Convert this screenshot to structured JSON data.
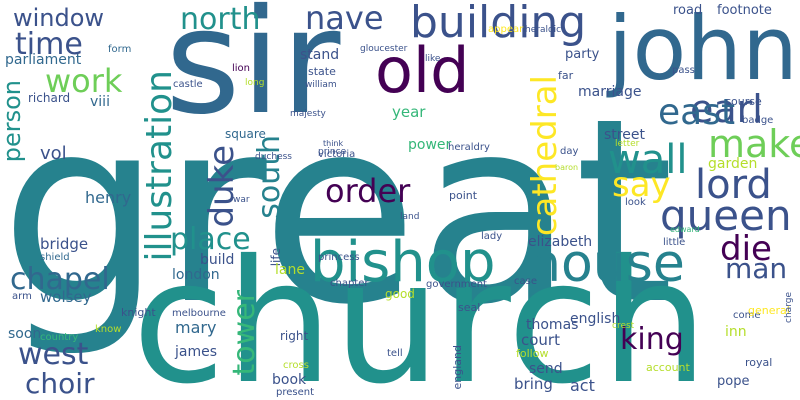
{
  "palette": {
    "dark_purple": "#440154",
    "indigo": "#3b528b",
    "blue": "#31688e",
    "teal": "#26828e",
    "sea": "#21918c",
    "green": "#35b779",
    "lime": "#6ece58",
    "yellow_green": "#b5de2b",
    "yellow": "#fde725"
  },
  "words": [
    {
      "text": "great",
      "color": "#26828e"
    },
    {
      "text": "church",
      "color": "#21918c"
    },
    {
      "text": "sir",
      "color": "#31688e"
    },
    {
      "text": "john",
      "color": "#31688e"
    },
    {
      "text": "old",
      "color": "#440154"
    },
    {
      "text": "bishop",
      "color": "#21918c"
    },
    {
      "text": "house",
      "color": "#26828e"
    },
    {
      "text": "building",
      "color": "#3b528b"
    },
    {
      "text": "nave",
      "color": "#3b528b"
    },
    {
      "text": "north",
      "color": "#21918c"
    },
    {
      "text": "earl",
      "color": "#3b528b"
    },
    {
      "text": "make",
      "color": "#6ece58"
    },
    {
      "text": "east",
      "color": "#31688e"
    },
    {
      "text": "lord",
      "color": "#3b528b"
    },
    {
      "text": "queen",
      "color": "#3b528b"
    },
    {
      "text": "wall",
      "color": "#21918c"
    },
    {
      "text": "say",
      "color": "#fde725"
    },
    {
      "text": "cathedral",
      "color": "#fde725"
    },
    {
      "text": "illustration",
      "color": "#21918c"
    },
    {
      "text": "duke",
      "color": "#3b528b"
    },
    {
      "text": "south",
      "color": "#26828e"
    },
    {
      "text": "order",
      "color": "#440154"
    },
    {
      "text": "place",
      "color": "#21918c"
    },
    {
      "text": "die",
      "color": "#440154"
    },
    {
      "text": "man",
      "color": "#3b528b"
    },
    {
      "text": "tower",
      "color": "#35b779"
    },
    {
      "text": "king",
      "color": "#440154"
    },
    {
      "text": "window",
      "color": "#3b528b"
    },
    {
      "text": "time",
      "color": "#3b528b"
    },
    {
      "text": "work",
      "color": "#6ece58"
    },
    {
      "text": "person",
      "color": "#21918c"
    },
    {
      "text": "parliament",
      "color": "#31688e"
    },
    {
      "text": "richard",
      "color": "#3b528b"
    },
    {
      "text": "viii",
      "color": "#31688e"
    },
    {
      "text": "vol",
      "color": "#3b528b"
    },
    {
      "text": "henry",
      "color": "#31688e"
    },
    {
      "text": "bridge",
      "color": "#3b528b"
    },
    {
      "text": "london",
      "color": "#31688e"
    },
    {
      "text": "chapel",
      "color": "#31688e"
    },
    {
      "text": "wolsey",
      "color": "#31688e"
    },
    {
      "text": "soon",
      "color": "#31688e"
    },
    {
      "text": "west",
      "color": "#3b528b"
    },
    {
      "text": "choir",
      "color": "#3b528b"
    },
    {
      "text": "mary",
      "color": "#31688e"
    },
    {
      "text": "james",
      "color": "#3b528b"
    },
    {
      "text": "book",
      "color": "#3b528b"
    },
    {
      "text": "country",
      "color": "#35b779"
    },
    {
      "text": "shield",
      "color": "#31688e"
    },
    {
      "text": "arm",
      "color": "#3b528b"
    },
    {
      "text": "know",
      "color": "#b5de2b"
    },
    {
      "text": "form",
      "color": "#31688e"
    },
    {
      "text": "square",
      "color": "#31688e"
    },
    {
      "text": "stand",
      "color": "#3b528b"
    },
    {
      "text": "state",
      "color": "#3b528b"
    },
    {
      "text": "castle",
      "color": "#3b528b"
    },
    {
      "text": "lion",
      "color": "#440154"
    },
    {
      "text": "long",
      "color": "#b5de2b"
    },
    {
      "text": "william",
      "color": "#3b528b"
    },
    {
      "text": "gloucester",
      "color": "#3b528b"
    },
    {
      "text": "like",
      "color": "#3b528b"
    },
    {
      "text": "majesty",
      "color": "#3b528b"
    },
    {
      "text": "duchess",
      "color": "#3b528b"
    },
    {
      "text": "prince",
      "color": "#3b528b"
    },
    {
      "text": "think",
      "color": "#3b528b"
    },
    {
      "text": "victoria",
      "color": "#3b528b"
    },
    {
      "text": "princess",
      "color": "#3b528b"
    },
    {
      "text": "heraldry",
      "color": "#3b528b"
    },
    {
      "text": "power",
      "color": "#35b779"
    },
    {
      "text": "year",
      "color": "#35b779"
    },
    {
      "text": "party",
      "color": "#3b528b"
    },
    {
      "text": "marriage",
      "color": "#3b528b"
    },
    {
      "text": "street",
      "color": "#3b528b"
    },
    {
      "text": "garden",
      "color": "#b5de2b"
    },
    {
      "text": "course",
      "color": "#3b528b"
    },
    {
      "text": "badge",
      "color": "#3b528b"
    },
    {
      "text": "road",
      "color": "#3b528b"
    },
    {
      "text": "footnote",
      "color": "#3b528b"
    },
    {
      "text": "heraldic",
      "color": "#3b528b"
    },
    {
      "text": "appear",
      "color": "#fde725"
    },
    {
      "text": "far",
      "color": "#3b528b"
    },
    {
      "text": "pass",
      "color": "#3b528b"
    },
    {
      "text": "letter",
      "color": "#b5de2b"
    },
    {
      "text": "day",
      "color": "#3b528b"
    },
    {
      "text": "baron",
      "color": "#b5de2b"
    },
    {
      "text": "look",
      "color": "#3b528b"
    },
    {
      "text": "edward",
      "color": "#35b779"
    },
    {
      "text": "little",
      "color": "#3b528b"
    },
    {
      "text": "point",
      "color": "#3b528b"
    },
    {
      "text": "lady",
      "color": "#3b528b"
    },
    {
      "text": "elizabeth",
      "color": "#3b528b"
    },
    {
      "text": "build",
      "color": "#3b528b"
    },
    {
      "text": "life",
      "color": "#3b528b"
    },
    {
      "text": "lane",
      "color": "#b5de2b"
    },
    {
      "text": "land",
      "color": "#3b528b"
    },
    {
      "text": "war",
      "color": "#3b528b"
    },
    {
      "text": "knight",
      "color": "#3b528b"
    },
    {
      "text": "melbourne",
      "color": "#3b528b"
    },
    {
      "text": "chapter",
      "color": "#3b528b"
    },
    {
      "text": "good",
      "color": "#b5de2b"
    },
    {
      "text": "government",
      "color": "#3b528b"
    },
    {
      "text": "case",
      "color": "#3b528b"
    },
    {
      "text": "seal",
      "color": "#3b528b"
    },
    {
      "text": "english",
      "color": "#3b528b"
    },
    {
      "text": "thomas",
      "color": "#3b528b"
    },
    {
      "text": "court",
      "color": "#3b528b"
    },
    {
      "text": "inn",
      "color": "#b5de2b"
    },
    {
      "text": "come",
      "color": "#3b528b"
    },
    {
      "text": "crest",
      "color": "#b5de2b"
    },
    {
      "text": "right",
      "color": "#3b528b"
    },
    {
      "text": "cross",
      "color": "#b5de2b"
    },
    {
      "text": "tell",
      "color": "#3b528b"
    },
    {
      "text": "england",
      "color": "#3b528b"
    },
    {
      "text": "follow",
      "color": "#b5de2b"
    },
    {
      "text": "send",
      "color": "#3b528b"
    },
    {
      "text": "bring",
      "color": "#3b528b"
    },
    {
      "text": "act",
      "color": "#3b528b"
    },
    {
      "text": "account",
      "color": "#b5de2b"
    },
    {
      "text": "royal",
      "color": "#3b528b"
    },
    {
      "text": "pope",
      "color": "#3b528b"
    },
    {
      "text": "present",
      "color": "#3b528b"
    },
    {
      "text": "general",
      "color": "#fde725"
    },
    {
      "text": "charge",
      "color": "#3b528b"
    }
  ]
}
